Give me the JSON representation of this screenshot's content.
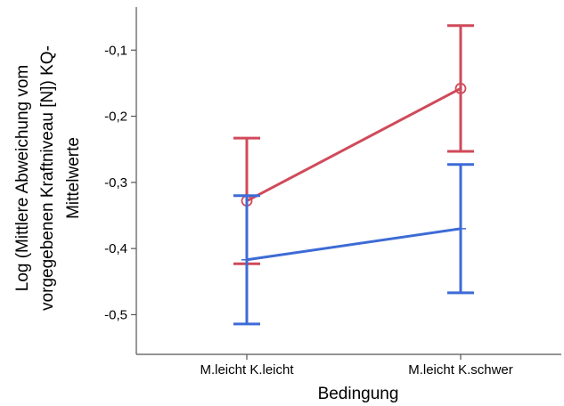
{
  "chart_data": {
    "type": "line",
    "title": "",
    "xlabel": "Bedingung",
    "ylabel_lines": [
      "Log (Mittlere Abweichung vom",
      "vorgegebenen Kraftniveau [N]) KQ-",
      "Mittelwerte"
    ],
    "categories": [
      "M.leicht K.leicht",
      "M.leicht K.schwer"
    ],
    "ylim": [
      -0.56,
      -0.035
    ],
    "yticks": [
      -0.5,
      -0.4,
      -0.3,
      -0.2,
      -0.1
    ],
    "ytick_labels": [
      "-0,5",
      "-0,4",
      "-0,3",
      "-0,2",
      "-0,1"
    ],
    "grid": false,
    "series": [
      {
        "color": "#d04a5a",
        "marker": "circle",
        "values": [
          -0.328,
          -0.158
        ],
        "err_low": [
          -0.423,
          -0.253
        ],
        "err_high": [
          -0.233,
          -0.063
        ]
      },
      {
        "color": "#3d6bd6",
        "marker": "none",
        "values": [
          -0.417,
          -0.37
        ],
        "err_low": [
          -0.514,
          -0.467
        ],
        "err_high": [
          -0.32,
          -0.273
        ]
      }
    ]
  }
}
